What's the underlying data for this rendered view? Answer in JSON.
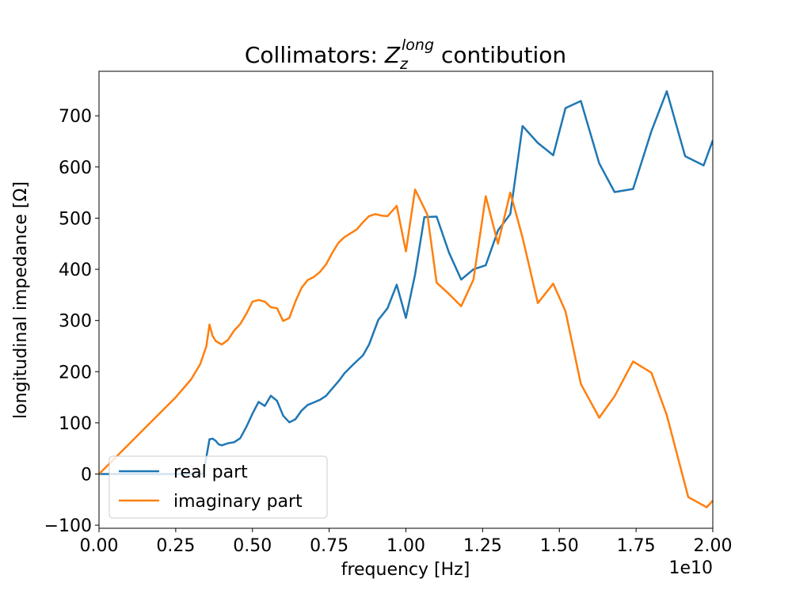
{
  "chart_data": {
    "type": "line",
    "title": "Collimators: ",
    "title_math": {
      "base": "Z",
      "sub": "z",
      "sup": "long"
    },
    "title_suffix": " contibution",
    "xlabel": "frequency [Hz]",
    "ylabel": "longitudinal impedance [Ω]",
    "x_offset_label": "1e10",
    "xlim": [
      0.0,
      2.0
    ],
    "ylim": [
      -106,
      787
    ],
    "x_ticks": [
      0.0,
      0.25,
      0.5,
      0.75,
      1.0,
      1.25,
      1.5,
      1.75,
      2.0
    ],
    "x_tick_labels": [
      "0.00",
      "0.25",
      "0.50",
      "0.75",
      "1.00",
      "1.25",
      "1.50",
      "1.75",
      "2.00"
    ],
    "y_ticks": [
      -100,
      0,
      100,
      200,
      300,
      400,
      500,
      600,
      700
    ],
    "y_tick_labels": [
      "−100",
      "0",
      "100",
      "200",
      "300",
      "400",
      "500",
      "600",
      "700"
    ],
    "grid": false,
    "legend_position": "lower-left",
    "series": [
      {
        "name": "real part",
        "color": "#1f77b4",
        "x": [
          0.0,
          0.34,
          0.36,
          0.37,
          0.38,
          0.39,
          0.4,
          0.42,
          0.44,
          0.46,
          0.48,
          0.5,
          0.52,
          0.54,
          0.56,
          0.58,
          0.6,
          0.62,
          0.64,
          0.66,
          0.68,
          0.7,
          0.72,
          0.74,
          0.76,
          0.78,
          0.8,
          0.83,
          0.86,
          0.88,
          0.91,
          0.94,
          0.97,
          1.0,
          1.03,
          1.06,
          1.1,
          1.14,
          1.18,
          1.22,
          1.26,
          1.3,
          1.34,
          1.38,
          1.43,
          1.48,
          1.52,
          1.57,
          1.63,
          1.68,
          1.74,
          1.8,
          1.85,
          1.91,
          1.97,
          2.0
        ],
        "y": [
          0,
          0,
          68,
          69,
          65,
          58,
          56,
          60,
          62,
          70,
          92,
          118,
          141,
          133,
          153,
          143,
          114,
          101,
          107,
          124,
          135,
          140,
          145,
          153,
          167,
          181,
          197,
          215,
          232,
          253,
          301,
          324,
          370,
          305,
          390,
          502,
          503,
          433,
          380,
          400,
          408,
          476,
          508,
          680,
          647,
          623,
          715,
          729,
          607,
          551,
          557,
          670,
          748,
          621,
          603,
          652
        ]
      },
      {
        "name": "imaginary part",
        "color": "#ff7f0e",
        "x": [
          0.0,
          0.05,
          0.1,
          0.15,
          0.2,
          0.25,
          0.3,
          0.33,
          0.35,
          0.36,
          0.37,
          0.38,
          0.4,
          0.42,
          0.44,
          0.46,
          0.48,
          0.5,
          0.52,
          0.54,
          0.56,
          0.58,
          0.6,
          0.62,
          0.64,
          0.66,
          0.68,
          0.7,
          0.72,
          0.74,
          0.76,
          0.78,
          0.8,
          0.84,
          0.86,
          0.88,
          0.9,
          0.92,
          0.94,
          0.97,
          1.0,
          1.03,
          1.07,
          1.1,
          1.14,
          1.18,
          1.22,
          1.26,
          1.3,
          1.34,
          1.38,
          1.43,
          1.48,
          1.52,
          1.57,
          1.63,
          1.68,
          1.74,
          1.8,
          1.85,
          1.92,
          1.98,
          2.0
        ],
        "y": [
          0,
          30,
          60,
          90,
          120,
          150,
          185,
          215,
          250,
          292,
          270,
          260,
          253,
          262,
          280,
          293,
          313,
          337,
          340,
          337,
          326,
          324,
          299,
          305,
          337,
          364,
          379,
          385,
          395,
          410,
          432,
          452,
          463,
          478,
          492,
          504,
          508,
          505,
          504,
          524,
          435,
          556,
          507,
          374,
          352,
          328,
          380,
          543,
          450,
          550,
          462,
          334,
          372,
          318,
          176,
          110,
          152,
          220,
          198,
          115,
          -45,
          -65,
          -52
        ]
      }
    ]
  }
}
